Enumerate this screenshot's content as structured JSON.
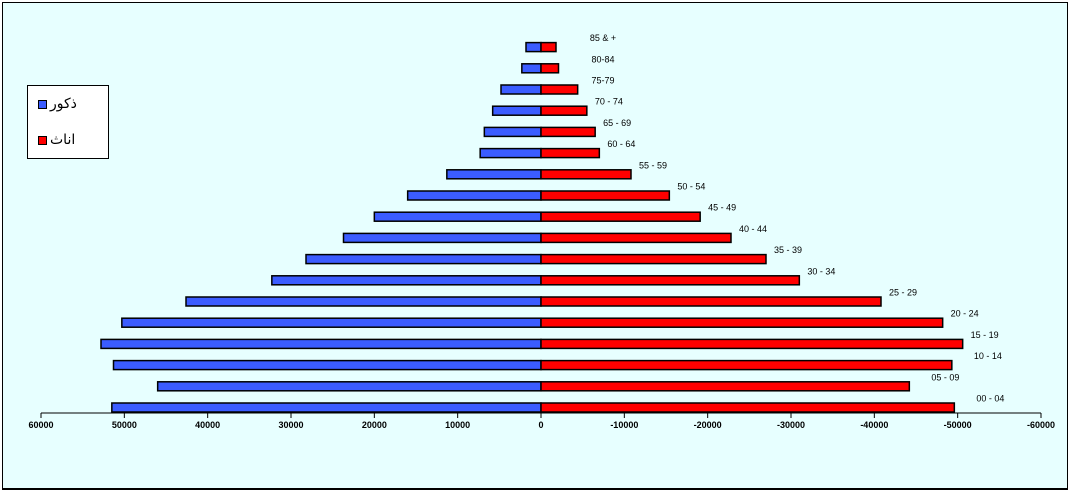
{
  "chart_data": {
    "type": "bar",
    "orientation": "horizontal",
    "categories": [
      "00 - 04",
      "05 - 09",
      "10 - 14",
      "15 - 19",
      "20 - 24",
      "25 - 29",
      "30 - 34",
      "35 - 39",
      "40 - 44",
      "45 - 49",
      "50 - 54",
      "55 - 59",
      "60 - 64",
      "65 - 69",
      "70 - 74",
      "75-79",
      "80-84",
      "85 & +"
    ],
    "series": [
      {
        "name": "ذكور",
        "color": "#3b5cff",
        "values": [
          51500,
          46000,
          51300,
          52800,
          50300,
          42600,
          32300,
          28200,
          23700,
          20000,
          16000,
          11300,
          7300,
          6800,
          5800,
          4800,
          2300,
          1800
        ]
      },
      {
        "name": "اناث",
        "color": "#ff0000",
        "values": [
          -49600,
          -44200,
          -49300,
          -50600,
          -48200,
          -40800,
          -31000,
          -27000,
          -22800,
          -19100,
          -15400,
          -10800,
          -7000,
          -6500,
          -5500,
          -4400,
          -2100,
          -1800
        ]
      }
    ],
    "xticks": [
      "60000",
      "50000",
      "40000",
      "30000",
      "20000",
      "10000",
      "0",
      "-10000",
      "-20000",
      "-30000",
      "-40000",
      "-50000",
      "-60000"
    ],
    "xlim": [
      60000,
      -60000
    ],
    "title": "",
    "xlabel": "",
    "ylabel": "",
    "legend": "left",
    "grid": false,
    "background": "#e7ffff"
  }
}
